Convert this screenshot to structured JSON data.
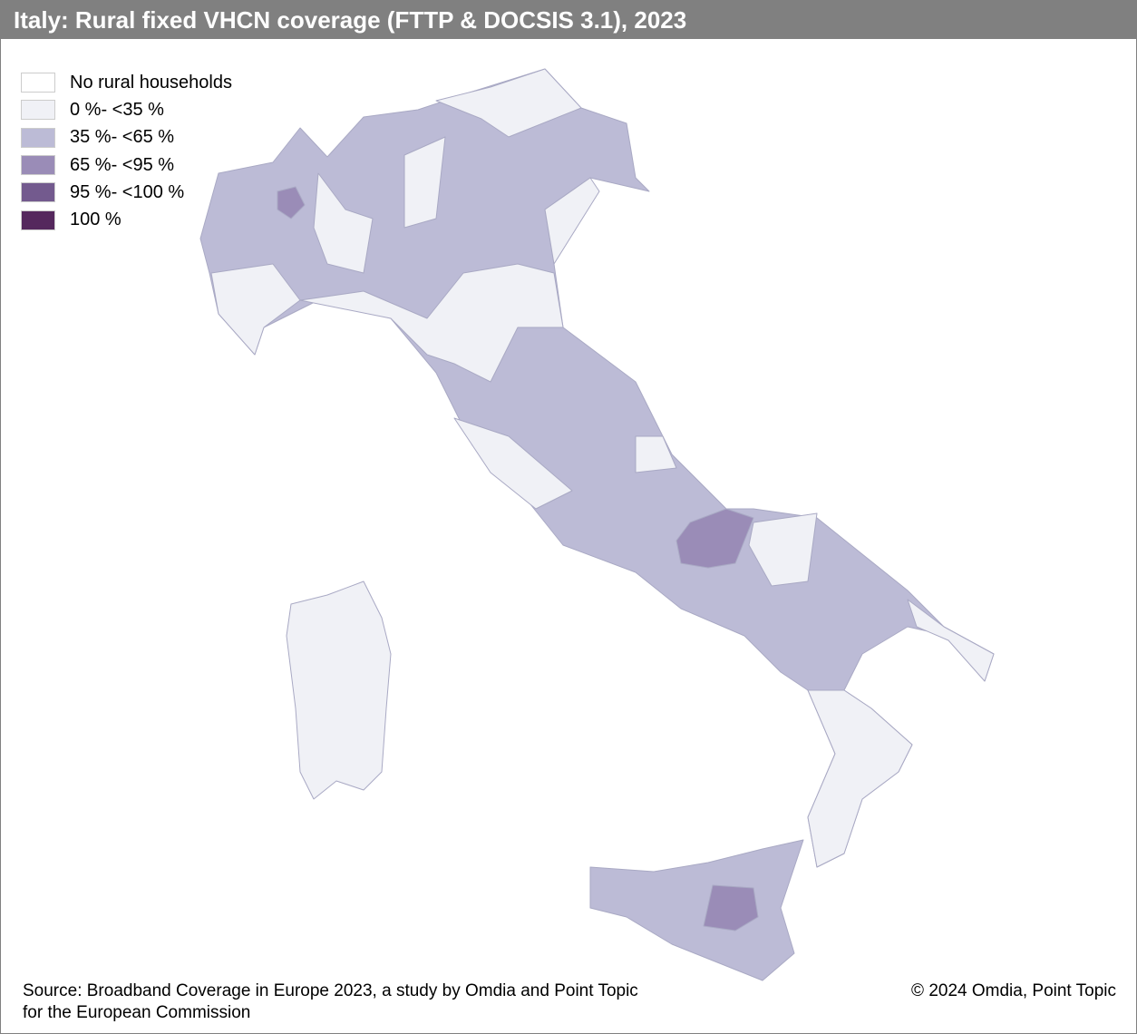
{
  "header": {
    "title": "Italy: Rural fixed VHCN coverage (FTTP & DOCSIS 3.1), 2023"
  },
  "legend": {
    "items": [
      {
        "label": "No rural households",
        "color": "#ffffff"
      },
      {
        "label": "0 %- <35 %",
        "color": "#f0f1f6"
      },
      {
        "label": "35 %- <65 %",
        "color": "#bcbbd6"
      },
      {
        "label": "65 %- <95 %",
        "color": "#9a8cb7"
      },
      {
        "label": "95 %- <100 %",
        "color": "#735a8e"
      },
      {
        "label": "100 %",
        "color": "#55285d"
      }
    ]
  },
  "footer": {
    "source": [
      "Source: Broadband Coverage in Europe 2023, a study by Omdia and Point Topic",
      "for the European Commission"
    ],
    "copyright": "© 2024 Omdia, Point Topic"
  }
}
